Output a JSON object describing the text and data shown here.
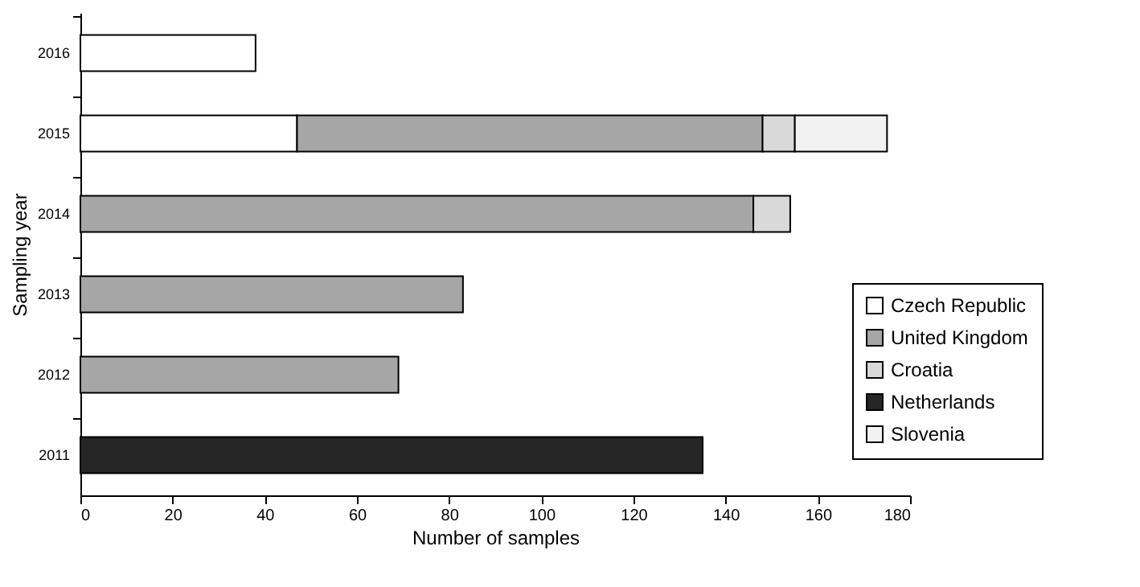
{
  "chart_data": {
    "type": "bar",
    "orientation": "horizontal",
    "stacked": true,
    "xlabel": "Number of samples",
    "ylabel": "Sampling year",
    "categories": [
      "2016",
      "2015",
      "2014",
      "2013",
      "2012",
      "2011"
    ],
    "series": [
      {
        "name": "Czech Republic",
        "color": "#ffffff",
        "values": [
          38,
          47,
          null,
          null,
          null,
          null
        ]
      },
      {
        "name": "United Kingdom",
        "color": "#a6a6a6",
        "values": [
          null,
          101,
          146,
          83,
          69,
          null
        ]
      },
      {
        "name": "Croatia",
        "color": "#d9d9d9",
        "values": [
          null,
          7,
          8,
          null,
          null,
          null
        ]
      },
      {
        "name": "Netherlands",
        "color": "#262626",
        "values": [
          null,
          null,
          null,
          null,
          null,
          135
        ]
      },
      {
        "name": "Slovenia",
        "color": "#f2f2f2",
        "values": [
          null,
          20,
          null,
          null,
          null,
          null
        ]
      }
    ],
    "xlim": [
      0,
      180
    ],
    "xticks": [
      0,
      20,
      40,
      60,
      80,
      100,
      120,
      140,
      160,
      180
    ],
    "grid": false,
    "legend": "right"
  }
}
